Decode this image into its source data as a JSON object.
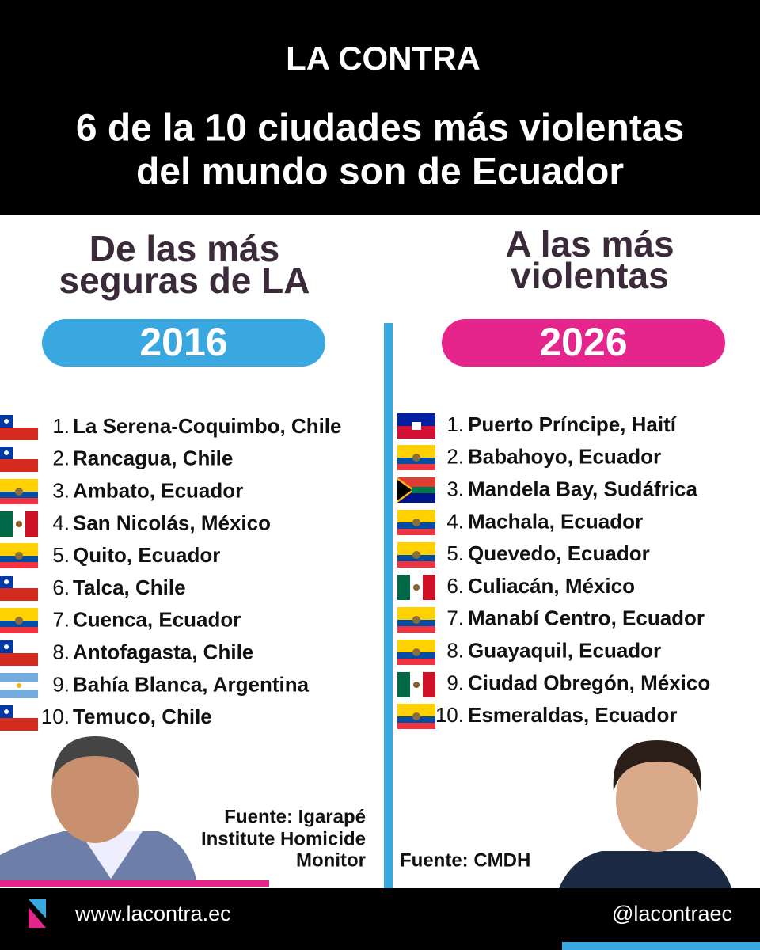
{
  "header": {
    "logo": "LA CONTRA",
    "title": [
      "6 de la 10 ciudades más violentas",
      "del mundo son de Ecuador"
    ]
  },
  "left": {
    "heading": [
      "De las más",
      "seguras de LA"
    ],
    "year": "2016",
    "items": [
      {
        "rank": "1.",
        "name": "La Serena-Coquimbo, Chile"
      },
      {
        "rank": "2.",
        "name": "Rancagua, Chile"
      },
      {
        "rank": "3.",
        "name": "Ambato, Ecuador"
      },
      {
        "rank": "4.",
        "name": "San Nicolás, México"
      },
      {
        "rank": "5.",
        "name": "Quito, Ecuador"
      },
      {
        "rank": "6.",
        "name": "Talca, Chile"
      },
      {
        "rank": "7.",
        "name": "Cuenca, Ecuador"
      },
      {
        "rank": "8.",
        "name": "Antofagasta, Chile"
      },
      {
        "rank": "9.",
        "name": "Bahía Blanca, Argentina"
      },
      {
        "rank": "10.",
        "name": "Temuco, Chile"
      }
    ],
    "source": [
      "Fuente: Igarapé",
      "Institute Homicide",
      "Monitor"
    ]
  },
  "right": {
    "heading": [
      "A las más",
      "violentas"
    ],
    "year": "2026",
    "items": [
      {
        "rank": "1.",
        "name": "Puerto Príncipe, Haití"
      },
      {
        "rank": "2.",
        "name": "Babahoyo, Ecuador"
      },
      {
        "rank": "3.",
        "name": "Mandela Bay, Sudáfrica"
      },
      {
        "rank": "4.",
        "name": "Machala, Ecuador"
      },
      {
        "rank": "5.",
        "name": "Quevedo, Ecuador"
      },
      {
        "rank": "6.",
        "name": "Culiacán, México"
      },
      {
        "rank": "7.",
        "name": "Manabí Centro, Ecuador"
      },
      {
        "rank": "8.",
        "name": "Guayaquil, Ecuador"
      },
      {
        "rank": "9.",
        "name": "Ciudad Obregón, México"
      },
      {
        "rank": "10.",
        "name": "Esmeraldas, Ecuador"
      }
    ],
    "source": [
      "Fuente: CMDH"
    ]
  },
  "footer": {
    "website": "www.lacontra.ec",
    "handle": "@lacontraec"
  }
}
